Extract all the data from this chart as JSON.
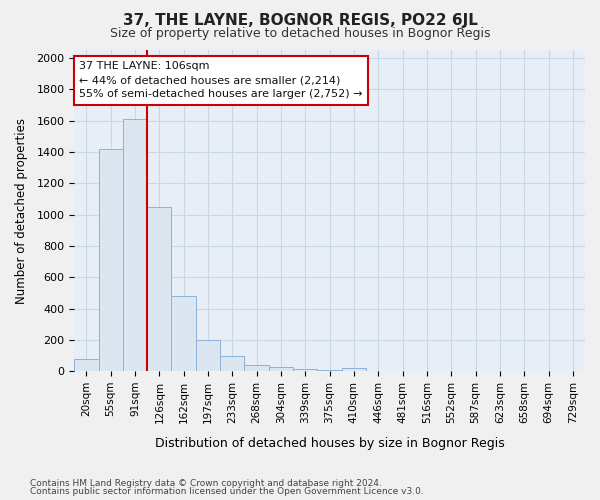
{
  "title": "37, THE LAYNE, BOGNOR REGIS, PO22 6JL",
  "subtitle": "Size of property relative to detached houses in Bognor Regis",
  "xlabel": "Distribution of detached houses by size in Bognor Regis",
  "ylabel": "Number of detached properties",
  "footer1": "Contains HM Land Registry data © Crown copyright and database right 2024.",
  "footer2": "Contains public sector information licensed under the Open Government Licence v3.0.",
  "bin_labels": [
    "20sqm",
    "55sqm",
    "91sqm",
    "126sqm",
    "162sqm",
    "197sqm",
    "233sqm",
    "268sqm",
    "304sqm",
    "339sqm",
    "375sqm",
    "410sqm",
    "446sqm",
    "481sqm",
    "516sqm",
    "552sqm",
    "587sqm",
    "623sqm",
    "658sqm",
    "694sqm",
    "729sqm"
  ],
  "bar_values": [
    80,
    1420,
    1610,
    1050,
    480,
    200,
    100,
    40,
    25,
    15,
    10,
    20,
    0,
    0,
    0,
    0,
    0,
    0,
    0,
    0,
    0
  ],
  "bar_color": "#dce6f1",
  "bar_edge_color": "#8db3d9",
  "ylim": [
    0,
    2050
  ],
  "yticks": [
    0,
    200,
    400,
    600,
    800,
    1000,
    1200,
    1400,
    1600,
    1800,
    2000
  ],
  "red_line_x": 2.5,
  "annotation_text1": "37 THE LAYNE: 106sqm",
  "annotation_text2": "← 44% of detached houses are smaller (2,214)",
  "annotation_text3": "55% of semi-detached houses are larger (2,752) →",
  "annotation_box_facecolor": "#ffffff",
  "annotation_box_edgecolor": "#cc0000",
  "red_line_color": "#cc0000",
  "grid_color": "#c8d8e8",
  "plot_bg_color": "#e8eef5",
  "fig_bg_color": "#f0f0f0"
}
